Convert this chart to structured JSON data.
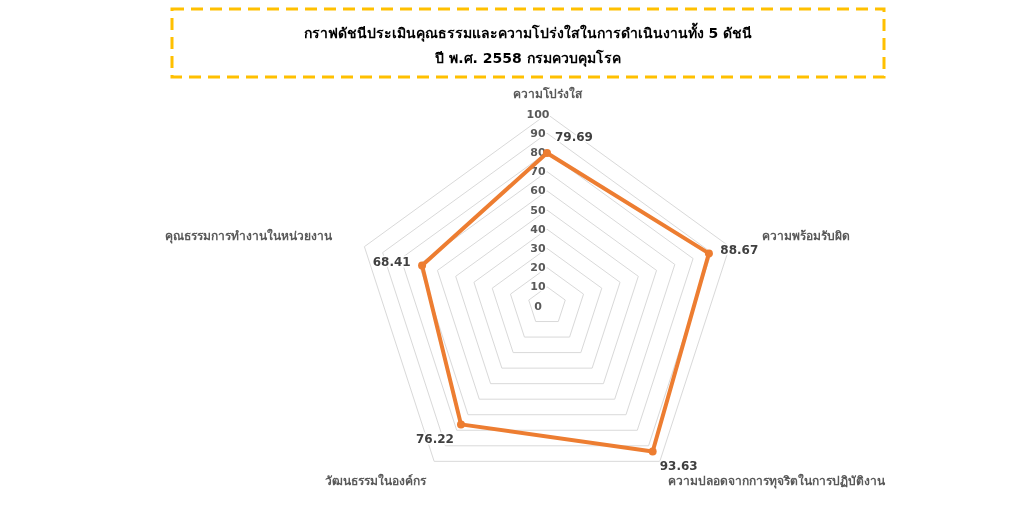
{
  "chart_data": {
    "type": "radar",
    "title": "กราฟดัชนีประเมินคุณธรรมและความโปร่งใสในการดำเนินงานทั้ง 5 ดัชนี",
    "subtitle": "ปี พ.ศ. 2558 กรมควบคุมโรค",
    "categories": [
      "ความโปร่งใส",
      "ความพร้อมรับผิด",
      "ความปลอดจากการทุจริตในการปฏิบัติงาน",
      "วัฒนธรรมในองค์กร",
      "คุณธรรมการทำงานในหน่วยงาน"
    ],
    "series": [
      {
        "color": "#ed7d31",
        "values": [
          79.69,
          88.67,
          93.63,
          76.22,
          68.41
        ]
      }
    ],
    "ylim": [
      0,
      100
    ],
    "yticks": [
      0,
      10,
      20,
      30,
      40,
      50,
      60,
      70,
      80,
      90,
      100
    ],
    "grid": true,
    "data_labels": true,
    "marker": "circle"
  }
}
